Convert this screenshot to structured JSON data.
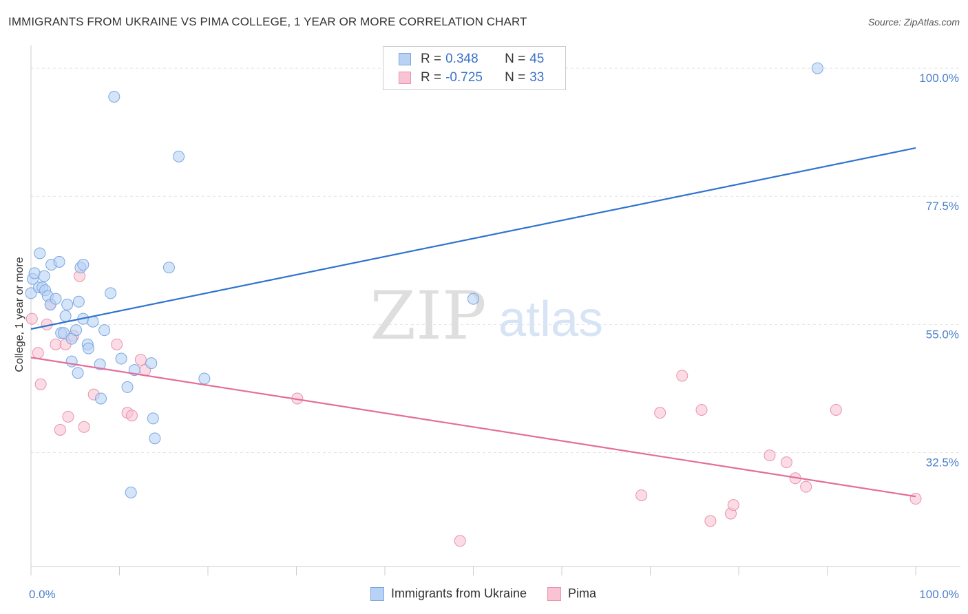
{
  "header": {
    "title": "IMMIGRANTS FROM UKRAINE VS PIMA COLLEGE, 1 YEAR OR MORE CORRELATION CHART",
    "source": "Source: ZipAtlas.com"
  },
  "watermark": {
    "zip": "ZIP",
    "atlas": "atlas"
  },
  "legend_top": {
    "rows": [
      {
        "r_label": "R =",
        "r_value": "0.348",
        "n_label": "N =",
        "n_value": "45"
      },
      {
        "r_label": "R =",
        "r_value": "-0.725",
        "n_label": "N =",
        "n_value": "33"
      }
    ]
  },
  "legend_bottom": {
    "series1": "Immigrants from Ukraine",
    "series2": "Pima"
  },
  "colors": {
    "blue_fill": "#b8d2f5",
    "blue_stroke": "#7aa6e0",
    "blue_line": "#2f73d0",
    "pink_fill": "#f8c4d4",
    "pink_stroke": "#e991ad",
    "pink_line": "#e46d9a",
    "grid": "#e3e3e3",
    "tick_label": "#4a7fcb"
  },
  "chart_data": {
    "type": "scatter",
    "title": "IMMIGRANTS FROM UKRAINE VS PIMA COLLEGE, 1 YEAR OR MORE CORRELATION CHART",
    "xlabel": "",
    "ylabel": "College, 1 year or more",
    "xlim": [
      0,
      100
    ],
    "ylim": [
      12.5,
      104
    ],
    "x_tick_labels": [
      "0.0%",
      "100.0%"
    ],
    "y_ticks": [
      {
        "value": 100,
        "label": "100.0%"
      },
      {
        "value": 77.5,
        "label": "77.5%"
      },
      {
        "value": 55,
        "label": "55.0%"
      },
      {
        "value": 32.5,
        "label": "32.5%"
      }
    ],
    "grid": true,
    "series": [
      {
        "name": "Immigrants from Ukraine",
        "r": 0.348,
        "n": 45,
        "trend": {
          "x": [
            0,
            100
          ],
          "y": [
            54.2,
            86.0
          ]
        },
        "points": [
          {
            "x": 0.0,
            "y": 60.5
          },
          {
            "x": 0.2,
            "y": 63.0
          },
          {
            "x": 0.4,
            "y": 64.0
          },
          {
            "x": 0.9,
            "y": 61.5
          },
          {
            "x": 1.0,
            "y": 67.5
          },
          {
            "x": 1.3,
            "y": 61.5
          },
          {
            "x": 1.5,
            "y": 63.5
          },
          {
            "x": 1.6,
            "y": 61.0
          },
          {
            "x": 1.9,
            "y": 60.0
          },
          {
            "x": 2.2,
            "y": 58.5
          },
          {
            "x": 2.3,
            "y": 65.5
          },
          {
            "x": 2.8,
            "y": 59.5
          },
          {
            "x": 3.2,
            "y": 66.0
          },
          {
            "x": 3.4,
            "y": 53.5
          },
          {
            "x": 3.7,
            "y": 53.5
          },
          {
            "x": 3.9,
            "y": 56.5
          },
          {
            "x": 4.1,
            "y": 58.5
          },
          {
            "x": 4.6,
            "y": 52.5
          },
          {
            "x": 4.6,
            "y": 48.5
          },
          {
            "x": 5.1,
            "y": 54.0
          },
          {
            "x": 5.3,
            "y": 46.5
          },
          {
            "x": 5.4,
            "y": 59.0
          },
          {
            "x": 5.6,
            "y": 65.0
          },
          {
            "x": 5.9,
            "y": 65.5
          },
          {
            "x": 5.9,
            "y": 56.0
          },
          {
            "x": 6.4,
            "y": 51.5
          },
          {
            "x": 6.5,
            "y": 50.8
          },
          {
            "x": 7.0,
            "y": 55.5
          },
          {
            "x": 7.8,
            "y": 48.0
          },
          {
            "x": 7.9,
            "y": 42.0
          },
          {
            "x": 8.3,
            "y": 54.0
          },
          {
            "x": 9.0,
            "y": 60.5
          },
          {
            "x": 9.4,
            "y": 95.0
          },
          {
            "x": 10.2,
            "y": 49.0
          },
          {
            "x": 10.9,
            "y": 44.0
          },
          {
            "x": 11.3,
            "y": 25.5
          },
          {
            "x": 11.7,
            "y": 47.0
          },
          {
            "x": 13.6,
            "y": 48.2
          },
          {
            "x": 13.8,
            "y": 38.5
          },
          {
            "x": 14.0,
            "y": 35.0
          },
          {
            "x": 15.6,
            "y": 65.0
          },
          {
            "x": 16.7,
            "y": 84.5
          },
          {
            "x": 19.6,
            "y": 45.5
          },
          {
            "x": 50.0,
            "y": 59.5
          },
          {
            "x": 88.9,
            "y": 100.0
          }
        ]
      },
      {
        "name": "Pima",
        "r": -0.725,
        "n": 33,
        "trend": {
          "x": [
            0,
            100
          ],
          "y": [
            49.2,
            24.8
          ]
        },
        "points": [
          {
            "x": 0.1,
            "y": 56.0
          },
          {
            "x": 0.8,
            "y": 50.0
          },
          {
            "x": 1.1,
            "y": 44.5
          },
          {
            "x": 1.8,
            "y": 55.0
          },
          {
            "x": 2.2,
            "y": 58.5
          },
          {
            "x": 2.8,
            "y": 51.5
          },
          {
            "x": 3.3,
            "y": 36.5
          },
          {
            "x": 3.9,
            "y": 51.5
          },
          {
            "x": 4.2,
            "y": 38.8
          },
          {
            "x": 4.8,
            "y": 53.0
          },
          {
            "x": 5.5,
            "y": 63.5
          },
          {
            "x": 6.0,
            "y": 37.0
          },
          {
            "x": 7.1,
            "y": 42.7
          },
          {
            "x": 9.7,
            "y": 51.5
          },
          {
            "x": 10.9,
            "y": 39.5
          },
          {
            "x": 11.4,
            "y": 39.0
          },
          {
            "x": 12.4,
            "y": 48.8
          },
          {
            "x": 12.9,
            "y": 47.0
          },
          {
            "x": 30.1,
            "y": 42.0
          },
          {
            "x": 48.5,
            "y": 17.0
          },
          {
            "x": 69.0,
            "y": 25.0
          },
          {
            "x": 71.1,
            "y": 39.5
          },
          {
            "x": 73.6,
            "y": 46.0
          },
          {
            "x": 75.8,
            "y": 40.0
          },
          {
            "x": 76.8,
            "y": 20.5
          },
          {
            "x": 79.1,
            "y": 21.8
          },
          {
            "x": 79.4,
            "y": 23.3
          },
          {
            "x": 83.5,
            "y": 32.0
          },
          {
            "x": 85.4,
            "y": 30.8
          },
          {
            "x": 86.4,
            "y": 28.0
          },
          {
            "x": 87.6,
            "y": 26.5
          },
          {
            "x": 91.0,
            "y": 40.0
          },
          {
            "x": 100.0,
            "y": 24.4
          }
        ]
      }
    ]
  }
}
